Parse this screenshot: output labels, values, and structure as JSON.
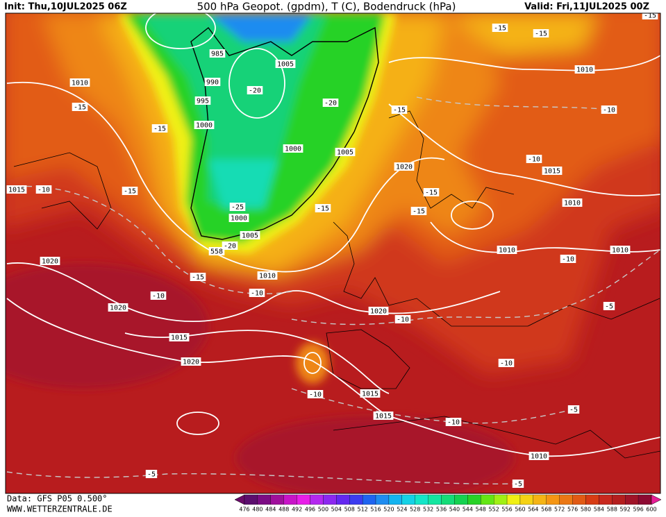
{
  "header": {
    "init": "Init: Thu,10JUL2025 06Z",
    "title": "500 hPa Geopot. (gpdm), T (C), Bodendruck (hPa)",
    "valid": "Valid: Fri,11JUL2025 00Z"
  },
  "pressure_labels": [
    "985",
    "990",
    "995",
    "1000",
    "1005",
    "1000",
    "1005",
    "1000",
    "1005",
    "1010",
    "1015",
    "1020",
    "1020",
    "1015",
    "1020",
    "1010",
    "1020",
    "1020",
    "1015",
    "1010",
    "1010",
    "1010",
    "1010",
    "1015",
    "1015",
    "1010"
  ],
  "temperature_labels": [
    "-15",
    "-15",
    "-15",
    "-20",
    "-20",
    "-15",
    "-15",
    "-15",
    "-10",
    "-10",
    "-10",
    "-15",
    "-25",
    "-20",
    "-15",
    "-15",
    "-15",
    "-15",
    "-10",
    "-10",
    "-10",
    "-10",
    "-5",
    "-10",
    "-10",
    "-10",
    "-5",
    "-5",
    "-5"
  ],
  "geopotential_labels": [
    "558"
  ],
  "legend": {
    "labels": [
      476,
      480,
      484,
      488,
      492,
      496,
      500,
      504,
      508,
      512,
      516,
      520,
      524,
      528,
      532,
      536,
      540,
      544,
      548,
      552,
      556,
      560,
      564,
      568,
      572,
      576,
      580,
      584,
      588,
      592,
      596,
      600
    ],
    "colors": [
      "#6a0a6a",
      "#5c0e6e",
      "#7c0c84",
      "#a0109c",
      "#c814c8",
      "#e81ee8",
      "#b428f0",
      "#8c28f0",
      "#6428f0",
      "#3c3cf0",
      "#1e64f0",
      "#1e8cf0",
      "#14b4f0",
      "#14d2e6",
      "#14e6c8",
      "#14e6a0",
      "#14dc78",
      "#14d250",
      "#28d228",
      "#64e614",
      "#a0f014",
      "#f0f014",
      "#f5d214",
      "#f5b414",
      "#f59614",
      "#eb7814",
      "#e15a14",
      "#d73c14",
      "#c8281e",
      "#b41e1e",
      "#a01428",
      "#8c0a32",
      "#e61e96"
    ]
  },
  "footer": {
    "data": "Data: GFS P05 0.500°",
    "site": "WWW.WETTERZENTRALE.DE"
  }
}
